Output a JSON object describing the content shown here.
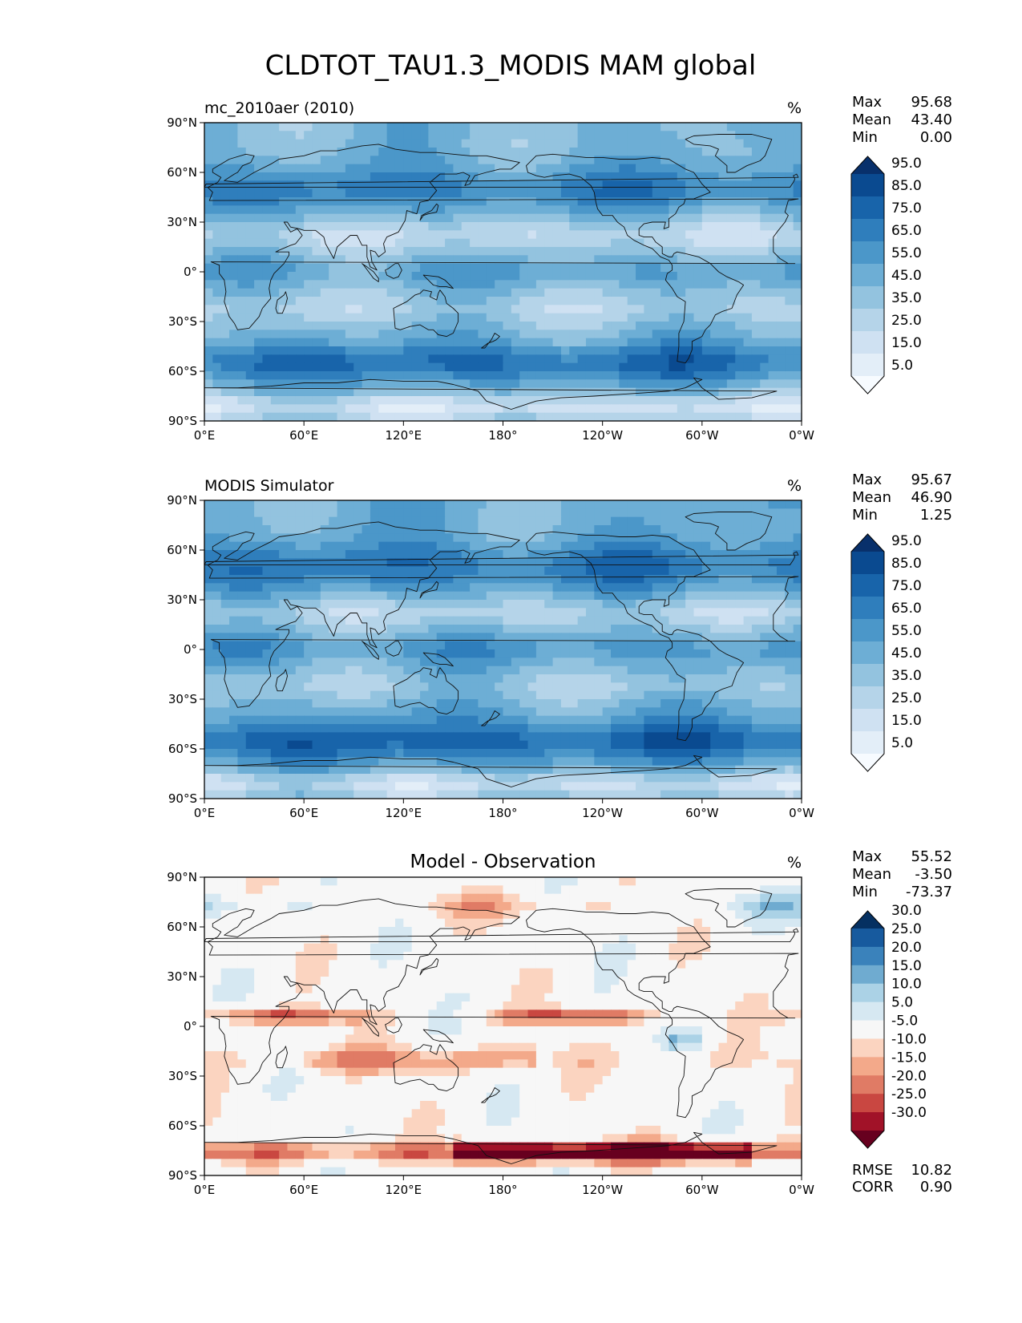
{
  "chart_data": {
    "type": "heatmap",
    "title": "CLDTOT_TAU1.3_MODIS MAM global",
    "lon_ticks": [
      "0°E",
      "60°E",
      "120°E",
      "180°",
      "120°W",
      "60°W",
      "0°W"
    ],
    "lat_ticks": [
      "90°N",
      "60°N",
      "30°N",
      "0°",
      "30°S",
      "60°S",
      "90°S"
    ],
    "panels": [
      {
        "id": "test",
        "title": "mc_2010aer (2010)",
        "units": "%",
        "stats": [
          {
            "label": "Max",
            "value": "95.68"
          },
          {
            "label": "Mean",
            "value": "43.40"
          },
          {
            "label": "Min",
            "value": "0.00"
          }
        ],
        "colorbar_levels": [
          "5.0",
          "15.0",
          "25.0",
          "35.0",
          "45.0",
          "55.0",
          "65.0",
          "75.0",
          "85.0",
          "95.0"
        ],
        "colors": [
          "#f7fbff",
          "#e3eef8",
          "#cfe1f2",
          "#b5d4e9",
          "#93c3df",
          "#6daed5",
          "#4b97c9",
          "#2f7ebc",
          "#1864aa",
          "#0a4a90",
          "#08306b"
        ]
      },
      {
        "id": "ref",
        "title": "MODIS Simulator",
        "units": "%",
        "stats": [
          {
            "label": "Max",
            "value": "95.67"
          },
          {
            "label": "Mean",
            "value": "46.90"
          },
          {
            "label": "Min",
            "value": "1.25"
          }
        ],
        "colorbar_levels": [
          "5.0",
          "15.0",
          "25.0",
          "35.0",
          "45.0",
          "55.0",
          "65.0",
          "75.0",
          "85.0",
          "95.0"
        ],
        "colors": [
          "#f7fbff",
          "#e3eef8",
          "#cfe1f2",
          "#b5d4e9",
          "#93c3df",
          "#6daed5",
          "#4b97c9",
          "#2f7ebc",
          "#1864aa",
          "#0a4a90",
          "#08306b"
        ]
      },
      {
        "id": "diff",
        "title": "Model - Observation",
        "units": "%",
        "stats": [
          {
            "label": "Max",
            "value": "55.52"
          },
          {
            "label": "Mean",
            "value": "-3.50"
          },
          {
            "label": "Min",
            "value": "-73.37"
          }
        ],
        "colorbar_levels": [
          "-30.0",
          "-25.0",
          "-20.0",
          "-15.0",
          "-10.0",
          "-5.0",
          "5.0",
          "10.0",
          "15.0",
          "20.0",
          "25.0",
          "30.0"
        ],
        "colors": [
          "#67001f",
          "#a11228",
          "#c94741",
          "#e07b65",
          "#f3a98a",
          "#fbd4c0",
          "#f7f7f7",
          "#d6e8f2",
          "#abd2e6",
          "#6fabd0",
          "#3a82bb",
          "#175a9e",
          "#053061"
        ],
        "extra_stats": [
          {
            "label": "RMSE",
            "value": "10.82"
          },
          {
            "label": "CORR",
            "value": "0.90"
          }
        ]
      }
    ]
  }
}
